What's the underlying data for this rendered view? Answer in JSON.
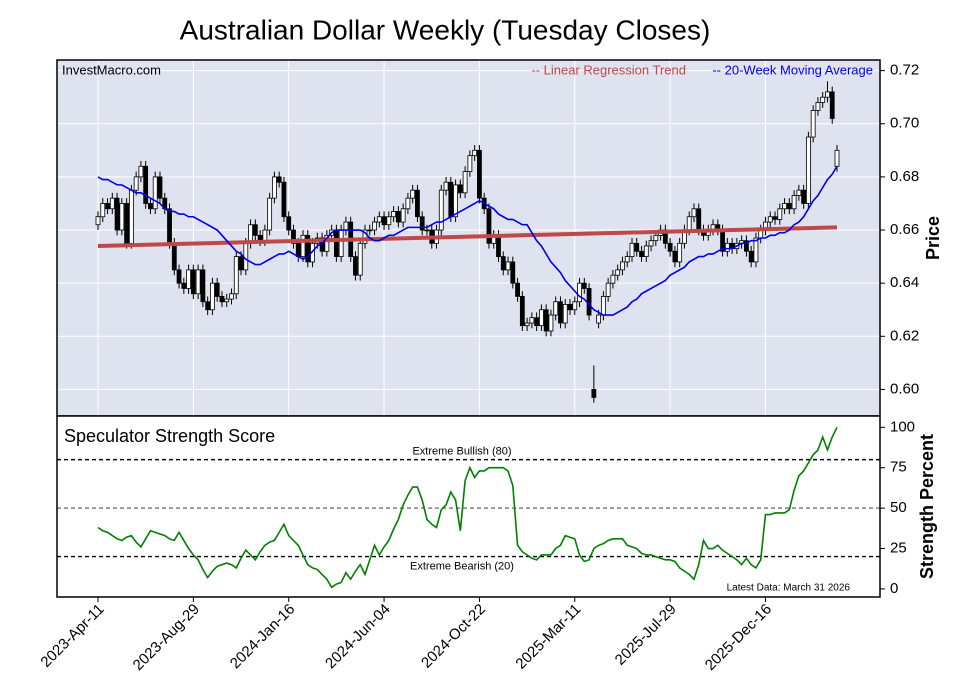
{
  "chart_data": [
    {
      "type": "candlestick",
      "title": "Australian Dollar Weekly (Tuesday Closes)",
      "source": "InvestMacro.com",
      "y_label": "Price",
      "ylim": [
        0.59,
        0.724
      ],
      "yticks": [
        {
          "value": 0.6,
          "label": "0.60"
        },
        {
          "value": 0.62,
          "label": "0.62"
        },
        {
          "value": 0.64,
          "label": "0.64"
        },
        {
          "value": 0.66,
          "label": "0.66"
        },
        {
          "value": 0.68,
          "label": "0.68"
        },
        {
          "value": 0.7,
          "label": "0.70"
        },
        {
          "value": 0.72,
          "label": "0.72"
        }
      ],
      "grid": true,
      "background": "#dfe3ef",
      "up_color": "#ffffff",
      "down_color": "#000000",
      "open": [
        0.662,
        0.665,
        0.67,
        0.668,
        0.672,
        0.66,
        0.67,
        0.655,
        0.675,
        0.68,
        0.684,
        0.67,
        0.668,
        0.68,
        0.672,
        0.668,
        0.655,
        0.645,
        0.64,
        0.638,
        0.645,
        0.636,
        0.645,
        0.633,
        0.63,
        0.64,
        0.635,
        0.633,
        0.634,
        0.636,
        0.65,
        0.645,
        0.655,
        0.662,
        0.658,
        0.656,
        0.66,
        0.672,
        0.68,
        0.678,
        0.665,
        0.66,
        0.655,
        0.65,
        0.658,
        0.648,
        0.655,
        0.657,
        0.652,
        0.658,
        0.66,
        0.65,
        0.66,
        0.663,
        0.65,
        0.643,
        0.655,
        0.66,
        0.66,
        0.663,
        0.665,
        0.662,
        0.665,
        0.667,
        0.663,
        0.668,
        0.672,
        0.675,
        0.665,
        0.66,
        0.66,
        0.655,
        0.66,
        0.675,
        0.678,
        0.665,
        0.677,
        0.674,
        0.682,
        0.688,
        0.69,
        0.672,
        0.668,
        0.655,
        0.658,
        0.65,
        0.645,
        0.648,
        0.64,
        0.635,
        0.624,
        0.625,
        0.627,
        0.624,
        0.63,
        0.622,
        0.628,
        0.633,
        0.625,
        0.632,
        0.63,
        0.633,
        0.64,
        0.638,
        0.6,
        0.625,
        0.628,
        0.635,
        0.64,
        0.643,
        0.645,
        0.648,
        0.65,
        0.655,
        0.652,
        0.65,
        0.654,
        0.656,
        0.658,
        0.66,
        0.655,
        0.652,
        0.648,
        0.655,
        0.66,
        0.665,
        0.668,
        0.66,
        0.658,
        0.66,
        0.662,
        0.66,
        0.652,
        0.655,
        0.653,
        0.655,
        0.656,
        0.652,
        0.648,
        0.657,
        0.66,
        0.663,
        0.665,
        0.664,
        0.668,
        0.67,
        0.668,
        0.673,
        0.675,
        0.67,
        0.695,
        0.705,
        0.708,
        0.71,
        0.712,
        0.684
      ],
      "high": [
        0.667,
        0.672,
        0.672,
        0.674,
        0.674,
        0.672,
        0.672,
        0.677,
        0.682,
        0.686,
        0.686,
        0.672,
        0.682,
        0.682,
        0.674,
        0.67,
        0.657,
        0.647,
        0.642,
        0.647,
        0.647,
        0.647,
        0.647,
        0.635,
        0.642,
        0.642,
        0.637,
        0.636,
        0.638,
        0.652,
        0.652,
        0.657,
        0.664,
        0.664,
        0.66,
        0.662,
        0.674,
        0.682,
        0.682,
        0.68,
        0.667,
        0.662,
        0.657,
        0.66,
        0.66,
        0.657,
        0.659,
        0.659,
        0.66,
        0.662,
        0.662,
        0.662,
        0.665,
        0.665,
        0.652,
        0.657,
        0.662,
        0.662,
        0.665,
        0.667,
        0.667,
        0.667,
        0.669,
        0.669,
        0.67,
        0.674,
        0.677,
        0.677,
        0.667,
        0.662,
        0.662,
        0.662,
        0.677,
        0.68,
        0.68,
        0.679,
        0.679,
        0.684,
        0.69,
        0.692,
        0.692,
        0.674,
        0.67,
        0.66,
        0.66,
        0.652,
        0.65,
        0.65,
        0.642,
        0.637,
        0.627,
        0.629,
        0.629,
        0.632,
        0.632,
        0.63,
        0.635,
        0.635,
        0.634,
        0.634,
        0.635,
        0.642,
        0.642,
        0.64,
        0.609,
        0.63,
        0.637,
        0.642,
        0.645,
        0.647,
        0.65,
        0.652,
        0.657,
        0.657,
        0.654,
        0.656,
        0.658,
        0.66,
        0.662,
        0.662,
        0.657,
        0.654,
        0.657,
        0.662,
        0.667,
        0.67,
        0.67,
        0.662,
        0.662,
        0.664,
        0.664,
        0.662,
        0.657,
        0.657,
        0.657,
        0.658,
        0.658,
        0.654,
        0.659,
        0.662,
        0.665,
        0.667,
        0.667,
        0.67,
        0.672,
        0.672,
        0.675,
        0.677,
        0.677,
        0.697,
        0.707,
        0.71,
        0.712,
        0.716,
        0.714,
        0.692
      ],
      "low": [
        0.66,
        0.663,
        0.666,
        0.666,
        0.658,
        0.658,
        0.653,
        0.653,
        0.673,
        0.678,
        0.668,
        0.666,
        0.666,
        0.67,
        0.666,
        0.653,
        0.643,
        0.638,
        0.636,
        0.636,
        0.634,
        0.634,
        0.631,
        0.628,
        0.628,
        0.633,
        0.631,
        0.631,
        0.632,
        0.634,
        0.643,
        0.643,
        0.653,
        0.656,
        0.654,
        0.654,
        0.658,
        0.67,
        0.676,
        0.663,
        0.658,
        0.653,
        0.648,
        0.648,
        0.646,
        0.646,
        0.653,
        0.65,
        0.65,
        0.656,
        0.648,
        0.648,
        0.658,
        0.648,
        0.641,
        0.641,
        0.653,
        0.658,
        0.658,
        0.661,
        0.66,
        0.66,
        0.663,
        0.661,
        0.661,
        0.666,
        0.67,
        0.663,
        0.658,
        0.658,
        0.653,
        0.653,
        0.658,
        0.673,
        0.663,
        0.663,
        0.672,
        0.672,
        0.68,
        0.686,
        0.67,
        0.666,
        0.653,
        0.653,
        0.648,
        0.643,
        0.643,
        0.638,
        0.633,
        0.622,
        0.622,
        0.623,
        0.622,
        0.622,
        0.62,
        0.62,
        0.626,
        0.623,
        0.623,
        0.628,
        0.628,
        0.631,
        0.636,
        0.626,
        0.595,
        0.623,
        0.626,
        0.633,
        0.638,
        0.641,
        0.643,
        0.646,
        0.648,
        0.65,
        0.648,
        0.648,
        0.652,
        0.654,
        0.656,
        0.653,
        0.65,
        0.646,
        0.646,
        0.653,
        0.658,
        0.663,
        0.658,
        0.656,
        0.656,
        0.658,
        0.658,
        0.65,
        0.65,
        0.651,
        0.651,
        0.653,
        0.65,
        0.646,
        0.646,
        0.655,
        0.658,
        0.661,
        0.662,
        0.662,
        0.666,
        0.666,
        0.666,
        0.671,
        0.668,
        0.668,
        0.693,
        0.703,
        0.706,
        0.708,
        0.7,
        0.682
      ],
      "close": [
        0.665,
        0.67,
        0.668,
        0.672,
        0.66,
        0.67,
        0.655,
        0.675,
        0.68,
        0.684,
        0.67,
        0.668,
        0.68,
        0.672,
        0.668,
        0.655,
        0.645,
        0.64,
        0.638,
        0.645,
        0.636,
        0.645,
        0.633,
        0.63,
        0.64,
        0.635,
        0.633,
        0.634,
        0.636,
        0.65,
        0.645,
        0.655,
        0.662,
        0.658,
        0.656,
        0.66,
        0.672,
        0.68,
        0.678,
        0.665,
        0.66,
        0.655,
        0.65,
        0.658,
        0.648,
        0.655,
        0.657,
        0.652,
        0.658,
        0.66,
        0.65,
        0.66,
        0.663,
        0.65,
        0.643,
        0.655,
        0.66,
        0.66,
        0.663,
        0.665,
        0.662,
        0.665,
        0.667,
        0.663,
        0.668,
        0.672,
        0.675,
        0.665,
        0.66,
        0.66,
        0.655,
        0.66,
        0.675,
        0.678,
        0.665,
        0.677,
        0.674,
        0.682,
        0.688,
        0.69,
        0.672,
        0.668,
        0.655,
        0.658,
        0.65,
        0.645,
        0.648,
        0.64,
        0.635,
        0.624,
        0.625,
        0.627,
        0.624,
        0.63,
        0.622,
        0.628,
        0.633,
        0.625,
        0.632,
        0.63,
        0.633,
        0.64,
        0.638,
        0.628,
        0.597,
        0.628,
        0.635,
        0.64,
        0.643,
        0.645,
        0.648,
        0.65,
        0.655,
        0.652,
        0.65,
        0.654,
        0.656,
        0.658,
        0.66,
        0.655,
        0.652,
        0.648,
        0.655,
        0.66,
        0.665,
        0.668,
        0.66,
        0.658,
        0.66,
        0.662,
        0.66,
        0.652,
        0.655,
        0.653,
        0.655,
        0.656,
        0.652,
        0.648,
        0.657,
        0.66,
        0.663,
        0.665,
        0.664,
        0.668,
        0.67,
        0.668,
        0.673,
        0.675,
        0.67,
        0.695,
        0.705,
        0.708,
        0.71,
        0.712,
        0.702,
        0.69
      ],
      "trend": {
        "name": "-- Linear Regression Trend",
        "color": "#c04848",
        "start": 0.654,
        "end": 0.661
      },
      "series": [
        {
          "name": "-- 20-Week Moving Average",
          "color": "#0000ee",
          "values": [
            0.68,
            0.679,
            0.679,
            0.678,
            0.677,
            0.677,
            0.676,
            0.675,
            0.674,
            0.674,
            0.673,
            0.672,
            0.671,
            0.67,
            0.668,
            0.667,
            0.667,
            0.666,
            0.666,
            0.665,
            0.665,
            0.664,
            0.663,
            0.662,
            0.661,
            0.66,
            0.658,
            0.656,
            0.654,
            0.652,
            0.651,
            0.649,
            0.648,
            0.647,
            0.647,
            0.648,
            0.649,
            0.65,
            0.651,
            0.651,
            0.652,
            0.651,
            0.65,
            0.649,
            0.65,
            0.652,
            0.654,
            0.655,
            0.657,
            0.659,
            0.66,
            0.66,
            0.66,
            0.66,
            0.66,
            0.66,
            0.659,
            0.657,
            0.656,
            0.656,
            0.657,
            0.658,
            0.658,
            0.659,
            0.66,
            0.661,
            0.661,
            0.661,
            0.661,
            0.661,
            0.662,
            0.663,
            0.663,
            0.664,
            0.665,
            0.666,
            0.667,
            0.668,
            0.669,
            0.67,
            0.671,
            0.67,
            0.669,
            0.668,
            0.666,
            0.665,
            0.664,
            0.664,
            0.663,
            0.662,
            0.662,
            0.659,
            0.656,
            0.654,
            0.651,
            0.648,
            0.646,
            0.644,
            0.641,
            0.639,
            0.637,
            0.635,
            0.634,
            0.632,
            0.63,
            0.629,
            0.628,
            0.628,
            0.628,
            0.629,
            0.63,
            0.631,
            0.633,
            0.634,
            0.636,
            0.637,
            0.638,
            0.639,
            0.64,
            0.641,
            0.643,
            0.644,
            0.645,
            0.646,
            0.648,
            0.649,
            0.65,
            0.65,
            0.651,
            0.651,
            0.652,
            0.653,
            0.653,
            0.653,
            0.654,
            0.655,
            0.655,
            0.656,
            0.656,
            0.657,
            0.657,
            0.658,
            0.658,
            0.659,
            0.659,
            0.66,
            0.662,
            0.663,
            0.665,
            0.668,
            0.671,
            0.673,
            0.676,
            0.679,
            0.681,
            0.684
          ]
        }
      ]
    },
    {
      "type": "line",
      "title": "Speculator Strength Score",
      "y_label": "Strength Percent",
      "note": "Latest Data: March 31 2026",
      "ylim": [
        -5,
        107
      ],
      "yticks": [
        0,
        25,
        50,
        75,
        100
      ],
      "color": "#008000",
      "reference_lines": [
        {
          "value": 80,
          "label": "Extreme Bullish (80)",
          "color": "#000000"
        },
        {
          "value": 50,
          "color": "#808080"
        },
        {
          "value": 20,
          "label": "Extreme Bearish (20)",
          "color": "#000000"
        }
      ],
      "categories": [
        "2023-Apr-11",
        null,
        null,
        null,
        null,
        null,
        null,
        null,
        null,
        null,
        null,
        null,
        null,
        null,
        null,
        null,
        null,
        null,
        null,
        null,
        "2023-Aug-29",
        null,
        null,
        null,
        null,
        null,
        null,
        null,
        null,
        null,
        null,
        null,
        null,
        null,
        null,
        null,
        null,
        null,
        null,
        null,
        "2024-Jan-16",
        null,
        null,
        null,
        null,
        null,
        null,
        null,
        null,
        null,
        null,
        null,
        null,
        null,
        null,
        null,
        null,
        null,
        null,
        null,
        "2024-Jun-04",
        null,
        null,
        null,
        null,
        null,
        null,
        null,
        null,
        null,
        null,
        null,
        null,
        null,
        null,
        null,
        null,
        null,
        null,
        null,
        "2024-Oct-22",
        null,
        null,
        null,
        null,
        null,
        null,
        null,
        null,
        null,
        null,
        null,
        null,
        null,
        null,
        null,
        null,
        null,
        null,
        null,
        "2025-Mar-11",
        null,
        null,
        null,
        null,
        null,
        null,
        null,
        null,
        null,
        null,
        null,
        null,
        null,
        null,
        null,
        null,
        null,
        null,
        null,
        "2025-Jul-29",
        null,
        null,
        null,
        null,
        null,
        null,
        null,
        null,
        null,
        null,
        null,
        null,
        null,
        null,
        null,
        null,
        null,
        null,
        null,
        "2025-Dec-16",
        null,
        null,
        null,
        null,
        null,
        null,
        null,
        null,
        null,
        null,
        null,
        null,
        null,
        null,
        null
      ],
      "values": [
        38,
        36,
        35,
        33,
        31,
        30,
        32,
        33,
        29,
        26,
        31,
        36,
        35,
        34,
        33,
        31,
        30,
        35,
        30,
        25,
        21,
        18,
        12,
        7,
        11,
        14,
        15,
        16,
        15,
        13,
        19,
        24,
        21,
        18,
        23,
        27,
        29,
        30,
        35,
        40,
        33,
        30,
        27,
        21,
        15,
        13,
        12,
        9,
        6,
        1,
        3,
        4,
        10,
        6,
        11,
        15,
        9,
        18,
        27,
        21,
        26,
        30,
        37,
        43,
        52,
        58,
        63,
        63,
        55,
        43,
        40,
        38,
        49,
        52,
        60,
        55,
        36,
        67,
        75,
        69,
        73,
        73,
        75,
        75,
        75,
        75,
        73,
        64,
        27,
        23,
        21,
        19,
        18,
        21,
        21,
        21,
        25,
        27,
        33,
        32,
        31,
        21,
        17,
        18,
        25,
        27,
        28,
        30,
        31,
        31,
        31,
        27,
        26,
        25,
        22,
        21,
        21,
        20,
        19,
        18,
        18,
        17,
        13,
        11,
        9,
        6,
        15,
        30,
        25,
        25,
        27,
        24,
        22,
        20,
        18,
        15,
        19,
        15,
        13,
        18,
        46,
        46,
        47,
        47,
        47,
        49,
        61,
        70,
        73,
        78,
        83,
        86,
        94,
        86,
        94,
        100
      ]
    }
  ]
}
